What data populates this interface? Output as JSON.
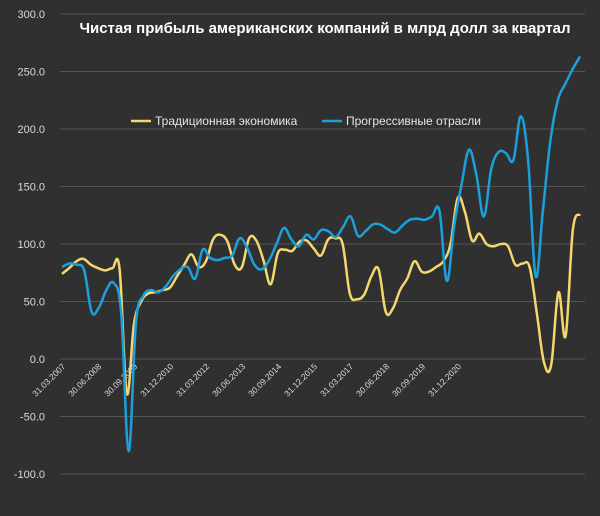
{
  "chart_data": {
    "type": "line",
    "title": "Чистая прибыль американских компаний в млрд долл за квартал",
    "xlabel": "",
    "ylabel": "",
    "ylim": [
      -100,
      300
    ],
    "yticks": [
      "300.0",
      "250.0",
      "200.0",
      "150.0",
      "100.0",
      "50.0",
      "0.0",
      "-50.0",
      "-100.0"
    ],
    "xticks": [
      "31.03.2007",
      "30.06.2008",
      "30.09.2009",
      "31.12.2010",
      "31.03.2012",
      "30.06.2013",
      "30.09.2014",
      "31.12.2015",
      "31.03.2017",
      "30.06.2018",
      "30.09.2019",
      "31.12.2020"
    ],
    "grid": "horizontal",
    "legend": "upper-center",
    "series": [
      {
        "name": "Традиционная экономика",
        "color": "#f5d76e",
        "values": [
          74,
          79,
          85,
          87,
          82,
          79,
          77,
          79,
          78,
          -30,
          30,
          50,
          57,
          58,
          60,
          62,
          72,
          82,
          91,
          80,
          85,
          104,
          108,
          102,
          82,
          80,
          105,
          103,
          86,
          65,
          92,
          95,
          94,
          102,
          103,
          96,
          90,
          104,
          105,
          100,
          57,
          52,
          56,
          72,
          78,
          41,
          44,
          60,
          70,
          85,
          76,
          76,
          80,
          85,
          100,
          140,
          128,
          103,
          109,
          100,
          98,
          100,
          98,
          82,
          83,
          80,
          40,
          -3,
          -5,
          58,
          20,
          112,
          126
        ]
      },
      {
        "name": "Прогрессивные отрасли",
        "color": "#1ca0dc",
        "values": [
          80,
          83,
          82,
          77,
          41,
          45,
          60,
          66,
          40,
          -80,
          32,
          55,
          60,
          58,
          63,
          72,
          78,
          80,
          70,
          95,
          88,
          86,
          88,
          90,
          105,
          97,
          82,
          78,
          86,
          100,
          114,
          104,
          98,
          108,
          104,
          112,
          111,
          106,
          115,
          124,
          107,
          111,
          117,
          117,
          113,
          110,
          116,
          121,
          122,
          121,
          124,
          129,
          68,
          116,
          152,
          182,
          160,
          124,
          165,
          180,
          179,
          173,
          211,
          172,
          72,
          130,
          190,
          225,
          239,
          252,
          263
        ]
      }
    ]
  }
}
